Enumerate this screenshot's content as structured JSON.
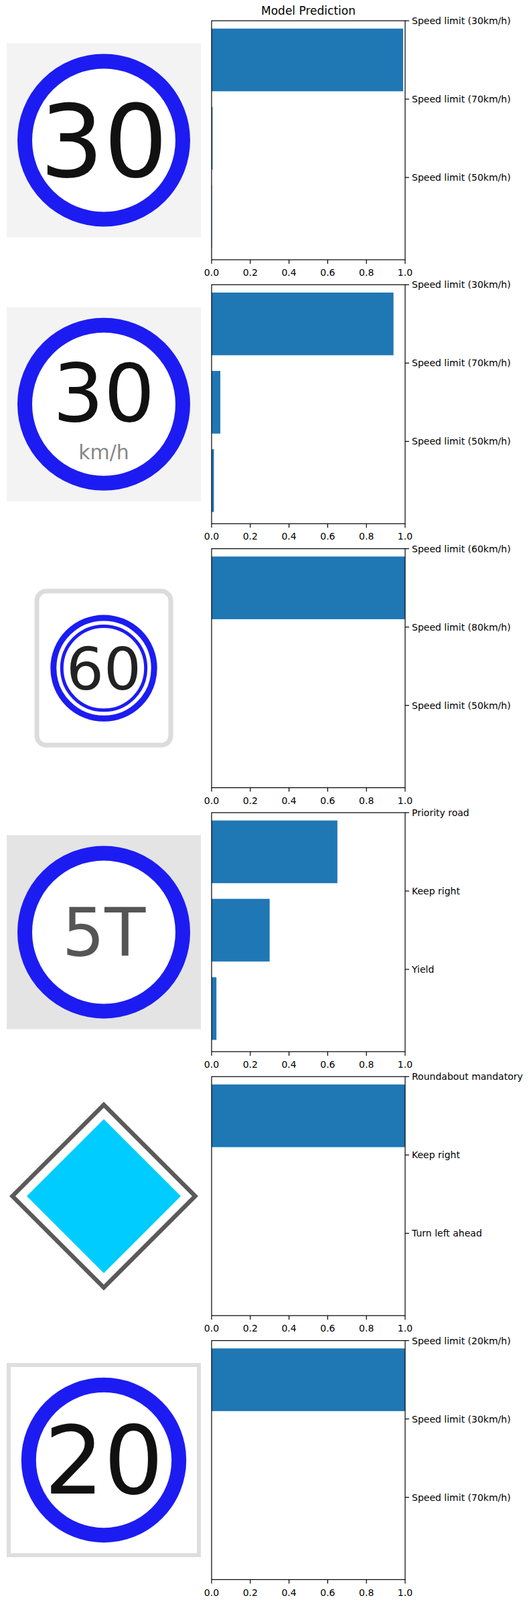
{
  "chart_data": [
    {
      "type": "bar",
      "title": "Model Prediction",
      "orientation": "horizontal",
      "color": "#1f77b4",
      "categories": [
        "Speed limit (30km/h)",
        "Speed limit (70km/h)",
        "Speed limit (50km/h)"
      ],
      "values": [
        0.99,
        0.005,
        0.002
      ],
      "xlim": [
        0,
        1
      ],
      "xticks": [
        {
          "value": 0,
          "label": "0.0"
        },
        {
          "value": 0.2,
          "label": "0.2"
        },
        {
          "value": 0.4,
          "label": "0.4"
        },
        {
          "value": 0.6,
          "label": "0.6"
        },
        {
          "value": 0.8,
          "label": "0.8"
        },
        {
          "value": 1,
          "label": "1.0"
        }
      ],
      "annotations": [
        "30"
      ]
    },
    {
      "type": "bar",
      "orientation": "horizontal",
      "color": "#1f77b4",
      "categories": [
        "Speed limit (30km/h)",
        "Speed limit (70km/h)",
        "Speed limit (50km/h)"
      ],
      "values": [
        0.94,
        0.045,
        0.012
      ],
      "xlim": [
        0,
        1
      ],
      "xticks": [
        {
          "value": 0,
          "label": "0.0"
        },
        {
          "value": 0.2,
          "label": "0.2"
        },
        {
          "value": 0.4,
          "label": "0.4"
        },
        {
          "value": 0.6,
          "label": "0.6"
        },
        {
          "value": 0.8,
          "label": "0.8"
        },
        {
          "value": 1,
          "label": "1.0"
        }
      ],
      "annotations": [
        "30",
        "km/h"
      ]
    },
    {
      "type": "bar",
      "orientation": "horizontal",
      "color": "#1f77b4",
      "categories": [
        "Speed limit (60km/h)",
        "Speed limit (80km/h)",
        "Speed limit (50km/h)"
      ],
      "values": [
        1.0,
        0.0,
        0.0
      ],
      "xlim": [
        0,
        1
      ],
      "xticks": [
        {
          "value": 0,
          "label": "0.0"
        },
        {
          "value": 0.2,
          "label": "0.2"
        },
        {
          "value": 0.4,
          "label": "0.4"
        },
        {
          "value": 0.6,
          "label": "0.6"
        },
        {
          "value": 0.8,
          "label": "0.8"
        },
        {
          "value": 1,
          "label": "1.0"
        }
      ],
      "annotations": [
        "60"
      ]
    },
    {
      "type": "bar",
      "orientation": "horizontal",
      "color": "#1f77b4",
      "categories": [
        "Priority road",
        "Keep right",
        "Yield"
      ],
      "values": [
        0.65,
        0.3,
        0.025
      ],
      "xlim": [
        0,
        1
      ],
      "xticks": [
        {
          "value": 0,
          "label": "0.0"
        },
        {
          "value": 0.2,
          "label": "0.2"
        },
        {
          "value": 0.4,
          "label": "0.4"
        },
        {
          "value": 0.6,
          "label": "0.6"
        },
        {
          "value": 0.8,
          "label": "0.8"
        },
        {
          "value": 1,
          "label": "1.0"
        }
      ],
      "annotations": [
        "5T"
      ]
    },
    {
      "type": "bar",
      "orientation": "horizontal",
      "color": "#1f77b4",
      "categories": [
        "Roundabout mandatory",
        "Keep right",
        "Turn left ahead"
      ],
      "values": [
        1.0,
        0.0,
        0.0
      ],
      "xlim": [
        0,
        1
      ],
      "xticks": [
        {
          "value": 0,
          "label": "0.0"
        },
        {
          "value": 0.2,
          "label": "0.2"
        },
        {
          "value": 0.4,
          "label": "0.4"
        },
        {
          "value": 0.6,
          "label": "0.6"
        },
        {
          "value": 0.8,
          "label": "0.8"
        },
        {
          "value": 1,
          "label": "1.0"
        }
      ]
    },
    {
      "type": "bar",
      "orientation": "horizontal",
      "color": "#1f77b4",
      "categories": [
        "Speed limit (20km/h)",
        "Speed limit (30km/h)",
        "Speed limit (70km/h)"
      ],
      "values": [
        1.0,
        0.0,
        0.0
      ],
      "xlim": [
        0,
        1
      ],
      "xticks": [
        {
          "value": 0,
          "label": "0.0"
        },
        {
          "value": 0.2,
          "label": "0.2"
        },
        {
          "value": 0.4,
          "label": "0.4"
        },
        {
          "value": 0.6,
          "label": "0.6"
        },
        {
          "value": 0.8,
          "label": "0.8"
        },
        {
          "value": 1,
          "label": "1.0"
        }
      ],
      "annotations": [
        "20"
      ]
    }
  ]
}
